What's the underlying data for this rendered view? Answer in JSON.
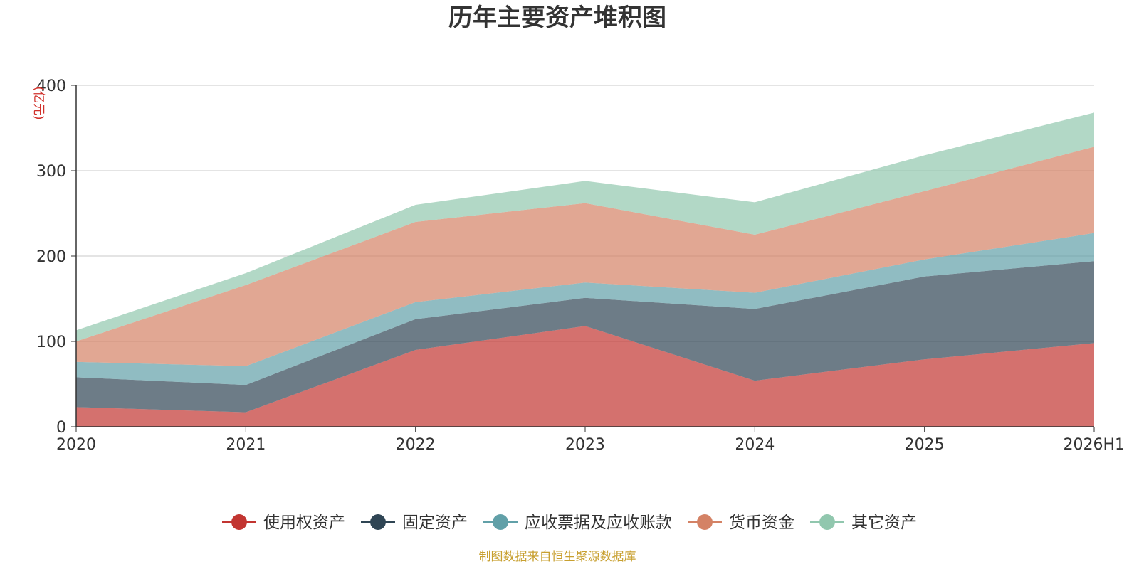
{
  "chart_data": {
    "type": "area",
    "stacked": true,
    "title": "历年主要资产堆积图",
    "unit_label": "(亿元)",
    "source_note": "制图数据来自恒生聚源数据库",
    "categories": [
      "2020",
      "2021",
      "2022",
      "2023",
      "2024",
      "2025",
      "2026H1"
    ],
    "ylim": [
      0,
      400
    ],
    "yticks": [
      0,
      100,
      200,
      300,
      400
    ],
    "grid": true,
    "legend_position": "bottom",
    "series": [
      {
        "name": "使用权资产",
        "color": "#c23531",
        "values": [
          23,
          17,
          90,
          118,
          54,
          79,
          98
        ]
      },
      {
        "name": "固定资产",
        "color": "#2f4554",
        "values": [
          35,
          32,
          36,
          33,
          84,
          97,
          96
        ]
      },
      {
        "name": "应收票据及应收账款",
        "color": "#61a0a8",
        "values": [
          18,
          22,
          20,
          18,
          19,
          20,
          33
        ]
      },
      {
        "name": "货币资金",
        "color": "#d48265",
        "values": [
          24,
          95,
          94,
          93,
          68,
          80,
          101
        ]
      },
      {
        "name": "其它资产",
        "color": "#91c7ae",
        "values": [
          13,
          14,
          20,
          26,
          38,
          42,
          40
        ]
      }
    ]
  }
}
